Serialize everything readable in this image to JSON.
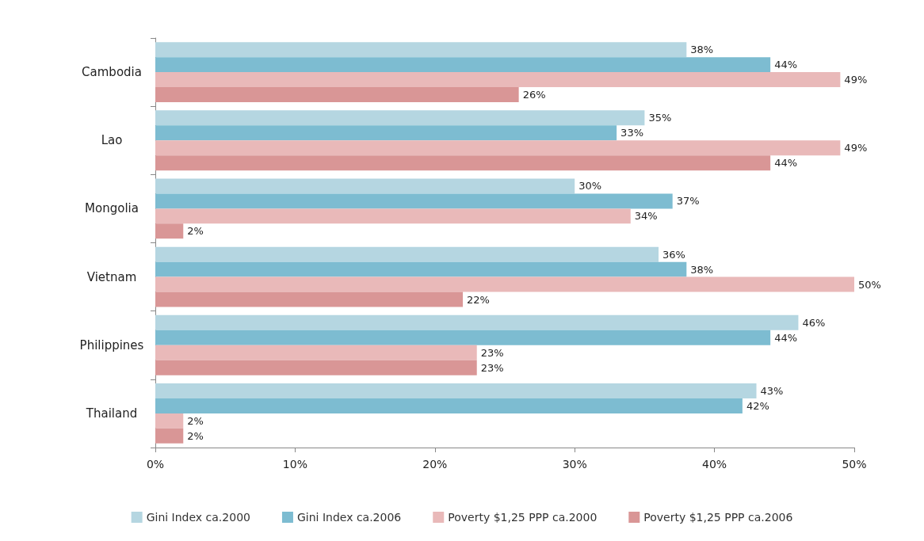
{
  "chart_data": {
    "type": "bar",
    "orientation": "horizontal",
    "categories": [
      "Cambodia",
      "Lao",
      "Mongolia",
      "Vietnam",
      "Philippines",
      "Thailand"
    ],
    "series": [
      {
        "name": "Gini Index ca.2000",
        "color": "#b5d6e1",
        "values": [
          38,
          35,
          30,
          36,
          46,
          43
        ],
        "value_labels": [
          "38%",
          "35%",
          "30%",
          "36%",
          "46%",
          "43%"
        ]
      },
      {
        "name": "Gini Index ca.2006",
        "color": "#7dbcd1",
        "values": [
          44,
          33,
          37,
          38,
          44,
          42
        ],
        "value_labels": [
          "44%",
          "33%",
          "37%",
          "38%",
          "44%",
          "42%"
        ]
      },
      {
        "name": "Poverty $1,25 PPP ca.2000",
        "color": "#e9b9b9",
        "values": [
          49,
          49,
          34,
          50,
          23,
          2
        ],
        "value_labels": [
          "49%",
          "49%",
          "34%",
          "50%",
          "23%",
          "2%"
        ]
      },
      {
        "name": "Poverty $1,25 PPP ca.2006",
        "color": "#d99696",
        "values": [
          26,
          44,
          2,
          22,
          23,
          2
        ],
        "value_labels": [
          "26%",
          "44%",
          "2%",
          "22%",
          "23%",
          "2%"
        ]
      }
    ],
    "xlim": [
      0,
      50
    ],
    "xticks": [
      {
        "value": 0,
        "label": "0%"
      },
      {
        "value": 10,
        "label": "10%"
      },
      {
        "value": 20,
        "label": "20%"
      },
      {
        "value": 30,
        "label": "30%"
      },
      {
        "value": 40,
        "label": "40%"
      },
      {
        "value": 50,
        "label": "50%"
      }
    ],
    "grid": false,
    "legend": "bottom"
  }
}
